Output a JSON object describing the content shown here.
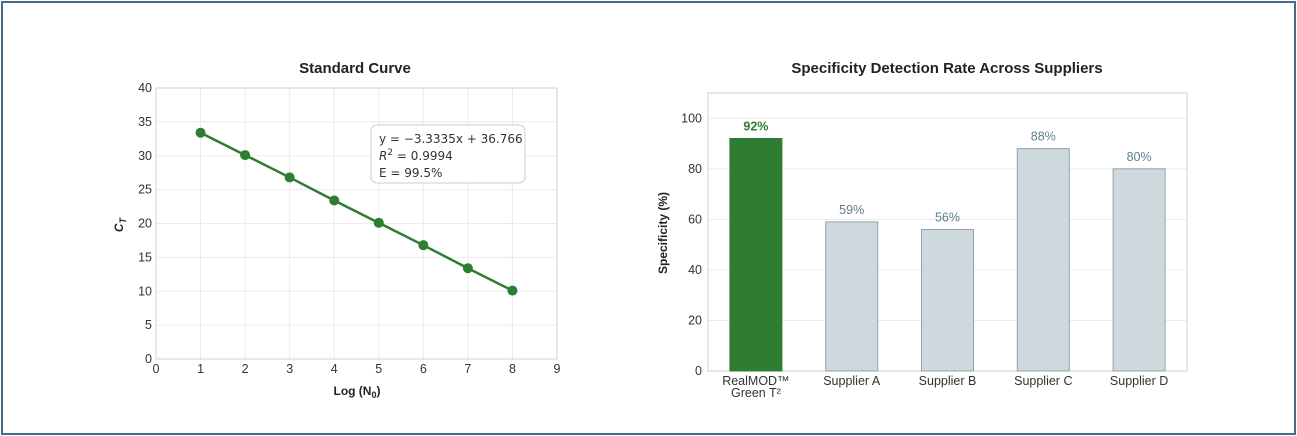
{
  "chart_data": [
    {
      "type": "line",
      "title": "Standard Curve",
      "xlabel": "Log (N",
      "xlabel_sub": "0",
      "xlabel_close": ")",
      "ylabel": "C",
      "ylabel_sub": "T",
      "xlim": [
        0,
        9
      ],
      "ylim": [
        0,
        40
      ],
      "xticks": [
        0,
        1,
        2,
        3,
        4,
        5,
        6,
        7,
        8,
        9
      ],
      "yticks": [
        0,
        5,
        10,
        15,
        20,
        25,
        30,
        35,
        40
      ],
      "grid": true,
      "color": "#2e7d32",
      "x": [
        1,
        2,
        3,
        4,
        5,
        6,
        7,
        8
      ],
      "y": [
        33.4,
        30.1,
        26.8,
        23.4,
        20.1,
        16.8,
        13.4,
        10.1
      ],
      "annotation": {
        "line1": "y = −3.3335x + 36.766",
        "line2_pre": "R",
        "line2_sup": "2",
        "line2_post": " = 0.9994",
        "line3": "E = 99.5%"
      }
    },
    {
      "type": "bar",
      "title": "Specificity Detection Rate Across Suppliers",
      "xlabel": "",
      "ylabel": "Specificity (%)",
      "ylim": [
        0,
        110
      ],
      "yticks": [
        0,
        20,
        40,
        60,
        80,
        100
      ],
      "grid": true,
      "categories": [
        [
          "RealMOD™",
          "Green T²"
        ],
        [
          "Supplier A"
        ],
        [
          "Supplier B"
        ],
        [
          "Supplier C"
        ],
        [
          "Supplier D"
        ]
      ],
      "values": [
        92,
        59,
        56,
        88,
        80
      ],
      "labels": [
        "92%",
        "59%",
        "56%",
        "88%",
        "80%"
      ],
      "colors": [
        "#2e7d32",
        "#cfd8dc",
        "#cfd8dc",
        "#cfd8dc",
        "#cfd8dc"
      ],
      "edge_colors": [
        "#2e7d32",
        "#90a4ae",
        "#90a4ae",
        "#90a4ae",
        "#90a4ae"
      ],
      "label_colors": [
        "#2e7d32",
        "#607d8b",
        "#607d8b",
        "#607d8b",
        "#607d8b"
      ]
    }
  ]
}
